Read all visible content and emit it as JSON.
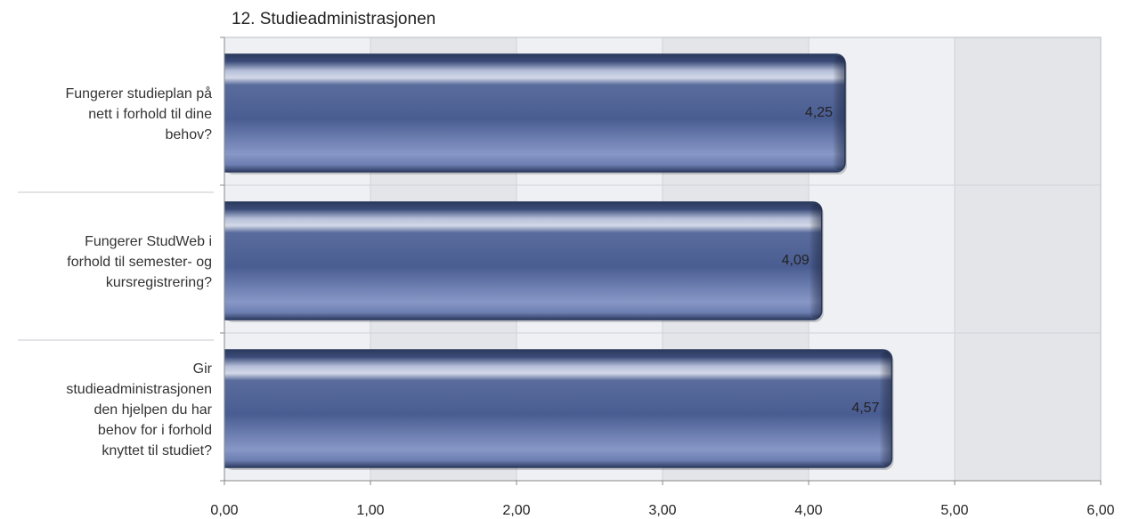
{
  "chart_data": {
    "type": "bar",
    "orientation": "horizontal",
    "title": "12. Studieadministrasjonen",
    "categories": [
      "Fungerer studieplan på nett i forhold til dine behov?",
      "Fungerer StudWeb i forhold til semester- og kursregistrering?",
      "Gir studieadministrasjonen den hjelpen du har behov for i forhold knyttet til studiet?"
    ],
    "category_lines": [
      [
        "Fungerer studieplan på",
        "nett i forhold til dine",
        "behov?"
      ],
      [
        "Fungerer StudWeb i",
        "forhold til semester- og",
        "kursregistrering?"
      ],
      [
        "Gir",
        "studieadministrasjonen",
        "den hjelpen du har",
        "behov for i forhold",
        "knyttet til studiet?"
      ]
    ],
    "values": [
      4.25,
      4.09,
      4.57
    ],
    "value_labels": [
      "4,25",
      "4,09",
      "4,57"
    ],
    "xlim": [
      0,
      6
    ],
    "x_ticks": [
      0,
      1,
      2,
      3,
      4,
      5,
      6
    ],
    "x_tick_labels": [
      "0,00",
      "1,00",
      "2,00",
      "3,00",
      "4,00",
      "5,00",
      "6,00"
    ],
    "xlabel": "",
    "ylabel": "",
    "grid": true,
    "colors": {
      "bar_dark": "#2b3a5e",
      "bar_mid": "#4a5f94",
      "bar_light": "#8a9bcc",
      "bar_highlight": "#c8d0e6",
      "band_light": "#eef0f3",
      "band_dark": "#e3e5e9",
      "grid": "#cfd2d8",
      "axis": "#888888"
    }
  }
}
